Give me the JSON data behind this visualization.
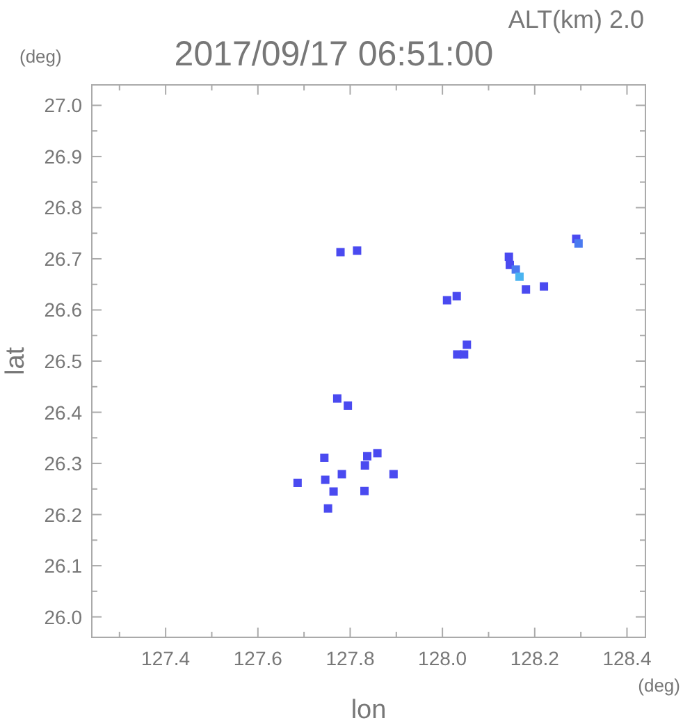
{
  "chart_data": {
    "type": "scatter",
    "title": "2017/09/17 06:51:00",
    "subtitle": "ALT(km) 2.0",
    "xlabel": "lon",
    "ylabel": "lat",
    "annotations": [
      "(deg)",
      "(deg)"
    ],
    "xlim": [
      127.24,
      128.44
    ],
    "ylim": [
      25.96,
      27.04
    ],
    "xticks": [
      {
        "value": 127.3,
        "label": null
      },
      127.4,
      {
        "value": 127.5,
        "label": null
      },
      127.6,
      {
        "value": 127.7,
        "label": null
      },
      127.8,
      {
        "value": 127.9,
        "label": null
      },
      {
        "value": 128.0,
        "label": "128.0"
      },
      {
        "value": 128.1,
        "label": null
      },
      128.2,
      {
        "value": 128.3,
        "label": null
      },
      128.4
    ],
    "yticks": [
      {
        "value": 26.0,
        "label": "26.0"
      },
      {
        "value": 26.05,
        "label": null
      },
      26.1,
      {
        "value": 26.15,
        "label": null
      },
      26.2,
      {
        "value": 26.25,
        "label": null
      },
      26.3,
      {
        "value": 26.35,
        "label": null
      },
      26.4,
      {
        "value": 26.45,
        "label": null
      },
      26.5,
      {
        "value": 26.55,
        "label": null
      },
      26.6,
      {
        "value": 26.65,
        "label": null
      },
      26.7,
      {
        "value": 26.75,
        "label": null
      },
      26.8,
      {
        "value": 26.85,
        "label": null
      },
      26.9,
      {
        "value": 26.95,
        "label": null
      },
      {
        "value": 27.0,
        "label": "27.0"
      }
    ],
    "marker": "square",
    "grid": false,
    "x": [
      127.779,
      127.815,
      128.01,
      128.031,
      128.032,
      127.772,
      127.795,
      127.837,
      127.859,
      127.832,
      127.782,
      127.894,
      127.744,
      127.746,
      127.686,
      127.764,
      127.831,
      127.752,
      128.29,
      128.295,
      128.144,
      128.146,
      128.159,
      128.167,
      128.22,
      128.047,
      128.053,
      128.181
    ],
    "values": [
      26.713,
      26.716,
      26.619,
      26.627,
      26.513,
      26.427,
      26.413,
      26.314,
      26.32,
      26.296,
      26.279,
      26.279,
      26.311,
      26.268,
      26.262,
      26.245,
      26.246,
      26.212,
      26.739,
      26.73,
      26.704,
      26.688,
      26.679,
      26.665,
      26.646,
      26.513,
      26.532,
      26.64
    ],
    "colors": [
      "#4a4af0",
      "#4a4af0",
      "#4a4af0",
      "#4a4af0",
      "#4a4af0",
      "#4a4af0",
      "#4a4af0",
      "#4a4af0",
      "#4a4af0",
      "#4a4af0",
      "#4a4af0",
      "#4a4af0",
      "#4a4af0",
      "#4a4af0",
      "#4a4af0",
      "#4a4af0",
      "#4a4af0",
      "#4a4af0",
      "#4a4af0",
      "#4a7af0",
      "#4a4af0",
      "#4a4af0",
      "#4a7af0",
      "#4ab4f0",
      "#4a4af0",
      "#4a4af0",
      "#4a4af0",
      "#4a4af0"
    ]
  }
}
